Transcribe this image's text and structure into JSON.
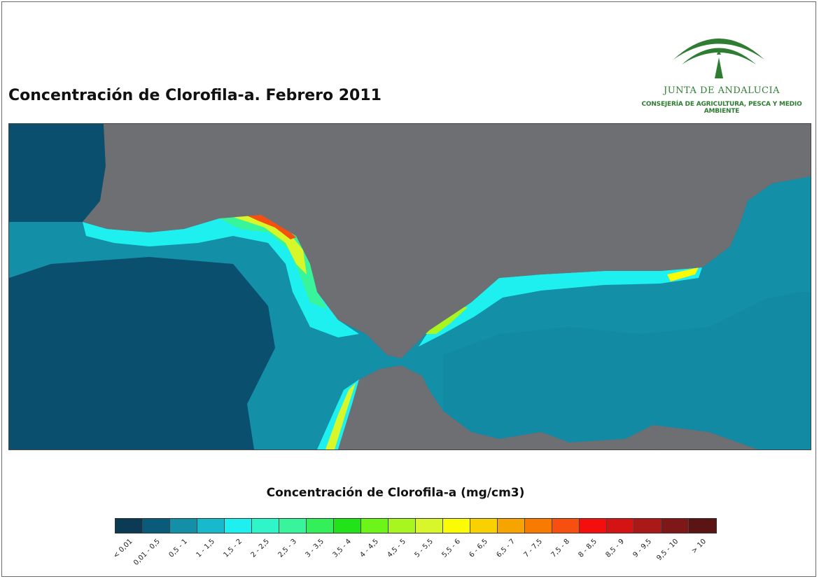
{
  "title": "Concentración de Clorofila-a. Febrero 2011",
  "logo": {
    "name": "JUNTA DE ANDALUCIA",
    "department": "CONSEJERÍA DE AGRICULTURA, PESCA Y MEDIO AMBIENTE",
    "icon": "junta-arch-icon",
    "color": "#2e7d32"
  },
  "map": {
    "land_color": "#6e6f72",
    "deep_water_color": "#0a4f6e"
  },
  "legend": {
    "title": "Concentración de Clorofila-a (mg/cm3)",
    "classes": [
      {
        "label": "< 0,01",
        "color": "#0b3a55"
      },
      {
        "label": "0,01 - 0,5",
        "color": "#0a5a7a"
      },
      {
        "label": "0,5 - 1",
        "color": "#1390a8"
      },
      {
        "label": "1 - 1,5",
        "color": "#17b9cc"
      },
      {
        "label": "1,5 - 2",
        "color": "#1ef0f0"
      },
      {
        "label": "2 - 2,5",
        "color": "#30f5c8"
      },
      {
        "label": "2,5 - 3",
        "color": "#38f49a"
      },
      {
        "label": "3 - 3,5",
        "color": "#33ef5a"
      },
      {
        "label": "3,5 - 4",
        "color": "#22e21a"
      },
      {
        "label": "4 - 4,5",
        "color": "#6df51a"
      },
      {
        "label": "4,5 - 5",
        "color": "#a8f520"
      },
      {
        "label": "5 - 5,5",
        "color": "#d8f72a"
      },
      {
        "label": "5,5 - 6",
        "color": "#fbfb04"
      },
      {
        "label": "6 - 6,5",
        "color": "#f9d100"
      },
      {
        "label": "6,5 - 7",
        "color": "#f8a400"
      },
      {
        "label": "7 - 7,5",
        "color": "#f87a00"
      },
      {
        "label": "7,5 - 8",
        "color": "#f64f10"
      },
      {
        "label": "8 - 8,5",
        "color": "#f40e0e"
      },
      {
        "label": "8,5 - 9",
        "color": "#d41414"
      },
      {
        "label": "9 - 9,5",
        "color": "#aa1818"
      },
      {
        "label": "9,5 - 10",
        "color": "#7e1818"
      },
      {
        "label": "> 10",
        "color": "#5a1414"
      }
    ]
  }
}
